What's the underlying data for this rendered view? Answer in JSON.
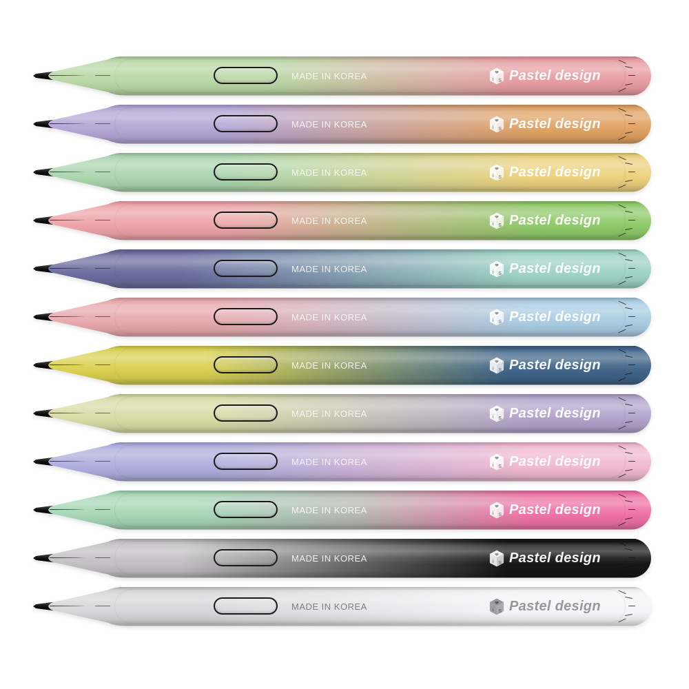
{
  "page": {
    "background": "#ffffff",
    "description": "Twelve pastel gradient stylus pens stacked vertically"
  },
  "brand": {
    "name": "Pastel design",
    "made_in": "MADE IN KOREA",
    "icon": "heart-cube-icon",
    "icon_letter_i": "i",
    "icon_letter_s": "S"
  },
  "pens": [
    {
      "name": "green-rose",
      "gradient": [
        "#b9d8a6 0%",
        "#b9d8a6 36%",
        "#e79da3 78%"
      ],
      "made_in_color": "rgba(255,255,255,0.85)",
      "brand_color": "rgba(255,255,255,0.95)"
    },
    {
      "name": "lavender-orange",
      "gradient": [
        "#b5a5d5 0%",
        "#b5a5d5 30%",
        "#e0a264 80%"
      ],
      "made_in_color": "rgba(255,255,255,0.85)",
      "brand_color": "rgba(255,255,255,0.95)"
    },
    {
      "name": "mint-yellow",
      "gradient": [
        "#abd5af 0%",
        "#abd5af 30%",
        "#ecd17e 80%"
      ],
      "made_in_color": "rgba(255,255,255,0.85)",
      "brand_color": "rgba(255,255,255,0.95)"
    },
    {
      "name": "rose-green",
      "gradient": [
        "#eda4a9 0%",
        "#eda4a9 30%",
        "#8dc968 82%"
      ],
      "made_in_color": "rgba(255,255,255,0.85)",
      "brand_color": "rgba(255,255,255,0.95)"
    },
    {
      "name": "indigo-mint",
      "gradient": [
        "#6a6c9e 0%",
        "#6a6c9e 22%",
        "#9fd2c5 78%"
      ],
      "made_in_color": "rgba(255,255,255,0.85)",
      "brand_color": "rgba(255,255,255,0.95)"
    },
    {
      "name": "rose-blue",
      "gradient": [
        "#e7a9ad 0%",
        "#e7a9ad 28%",
        "#a9cce2 80%"
      ],
      "made_in_color": "rgba(255,255,255,0.85)",
      "brand_color": "rgba(255,255,255,0.95)"
    },
    {
      "name": "yellow-navy",
      "gradient": [
        "#d9d051 0%",
        "#d9d051 26%",
        "#3f6488 76%"
      ],
      "made_in_color": "rgba(255,255,255,0.85)",
      "brand_color": "rgba(255,255,255,0.95)"
    },
    {
      "name": "lime-lilac",
      "gradient": [
        "#d9dba5 0%",
        "#d9dba5 28%",
        "#b2a2cb 80%"
      ],
      "made_in_color": "rgba(255,255,255,0.85)",
      "brand_color": "rgba(255,255,255,0.95)"
    },
    {
      "name": "periwinkle-pink",
      "gradient": [
        "#adaedc 0%",
        "#adaedc 28%",
        "#f0b9d0 80%"
      ],
      "made_in_color": "rgba(255,255,255,0.85)",
      "brand_color": "rgba(255,255,255,0.95)"
    },
    {
      "name": "mint-gray-pink",
      "gradient": [
        "#a6d6b6 0%",
        "#a6d6b6 25%",
        "#b7b5b1 52%",
        "#ee71a6 80%"
      ],
      "made_in_color": "rgba(255,255,255,0.85)",
      "brand_color": "rgba(255,255,255,0.95)"
    },
    {
      "name": "gray-black",
      "gradient": [
        "#c2c0c2 0%",
        "#c2c0c2 22%",
        "#161616 76%"
      ],
      "made_in_color": "rgba(255,255,255,0.88)",
      "brand_color": "rgba(255,255,255,0.95)"
    },
    {
      "name": "silver-white",
      "gradient": [
        "#d6d6d8 0%",
        "#d6d6d8 25%",
        "#f5f5f7 78%"
      ],
      "made_in_color": "#7d7e82",
      "brand_color": "#97989c"
    }
  ],
  "layout": {
    "pen_top_start": 81.5,
    "pen_spacing": 70
  }
}
